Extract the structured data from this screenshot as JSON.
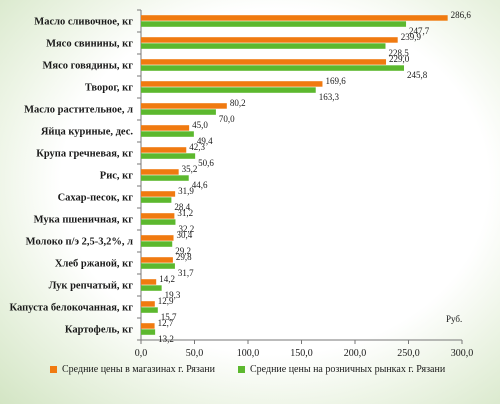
{
  "chart_data": {
    "type": "bar",
    "orientation": "horizontal",
    "categories": [
      "Масло сливочное, кг",
      "Мясо свинины, кг",
      "Мясо говядины, кг",
      "Творог, кг",
      "Масло растительное, л",
      "Яйца куриные, дес.",
      "Крупа гречневая, кг",
      "Рис, кг",
      "Сахар-песок, кг",
      "Мука пшеничная, кг",
      "Молоко п/э 2,5-3,2%, л",
      "Хлеб ржаной, кг",
      "Лук репчатый, кг",
      "Капуста белокочанная, кг",
      "Картофель, кг"
    ],
    "series": [
      {
        "name": "Средние цены в магазинах г. Рязани",
        "color": "#f07a10",
        "values": [
          286.6,
          239.9,
          229.0,
          169.6,
          80.2,
          45.0,
          42.3,
          35.2,
          31.9,
          31.2,
          30.4,
          29.8,
          14.2,
          12.9,
          12.7
        ],
        "labels": [
          "286,6",
          "239,9",
          "229,0",
          "169,6",
          "80,2",
          "45,0",
          "42,3",
          "35,2",
          "31,9",
          "31,2",
          "30,4",
          "29,8",
          "14,2",
          "12,9",
          "12,7"
        ]
      },
      {
        "name": "Средние цены на розничных рынках г. Рязани",
        "color": "#5cb82e",
        "values": [
          247.7,
          228.5,
          245.8,
          163.3,
          70.0,
          49.4,
          50.6,
          44.6,
          28.4,
          32.2,
          29.2,
          31.7,
          19.3,
          15.7,
          13.2
        ],
        "labels": [
          "247,7",
          "228,5",
          "245,8",
          "163,3",
          "70,0",
          "49,4",
          "50,6",
          "44,6",
          "28,4",
          "32,2",
          "29,2",
          "31,7",
          "19,3",
          "15,7",
          "13,2"
        ]
      }
    ],
    "xlim": [
      0,
      300
    ],
    "xticks": [
      "0,0",
      "50,0",
      "100,0",
      "150,0",
      "200,0",
      "250,0",
      "300,0"
    ],
    "unit_label": "Руб.",
    "legend_position": "bottom"
  }
}
